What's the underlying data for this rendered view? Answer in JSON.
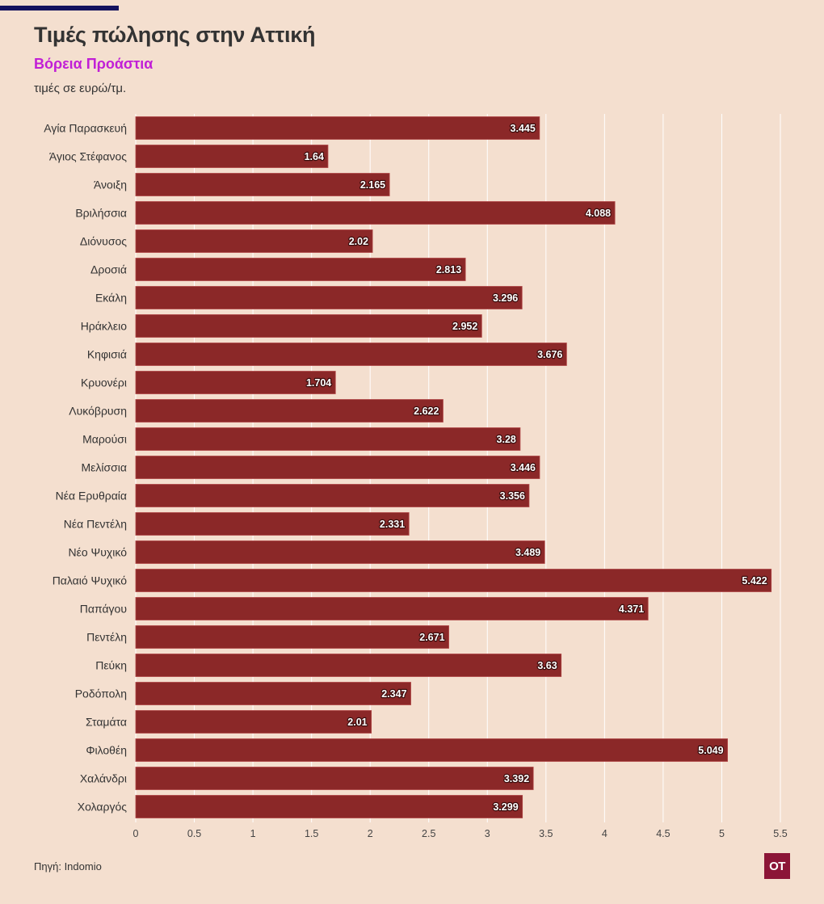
{
  "header": {
    "title": "Τιμές πώλησης στην Αττική",
    "subtitle": "Βόρεια Προάστια",
    "unit_note": "τιμές σε ευρώ/τμ."
  },
  "footer": {
    "source": "Πηγή: Indomio",
    "logo_text": "OT"
  },
  "colors": {
    "bar": "#8b2828",
    "background": "#f4dfcf",
    "accent": "#14125e",
    "subtitle": "#c11fd6",
    "grid": "#ffffff"
  },
  "chart_data": {
    "type": "bar",
    "orientation": "horizontal",
    "title": "Τιμές πώλησης στην Αττική",
    "subtitle": "Βόρεια Προάστια",
    "xlabel": "",
    "ylabel": "",
    "xlim": [
      0,
      5.5
    ],
    "xticks": [
      0,
      0.5,
      1,
      1.5,
      2,
      2.5,
      3,
      3.5,
      4,
      4.5,
      5,
      5.5
    ],
    "xtick_labels": [
      "0",
      "0.5",
      "1",
      "1.5",
      "2",
      "2.5",
      "3",
      "3.5",
      "4",
      "4.5",
      "5",
      "5.5"
    ],
    "grid": true,
    "categories": [
      "Αγία Παρασκευή",
      "Άγιος Στέφανος",
      "Άνοιξη",
      "Βριλήσσια",
      "Διόνυσος",
      "Δροσιά",
      "Εκάλη",
      "Ηράκλειο",
      "Κηφισιά",
      "Κρυονέρι",
      "Λυκόβρυση",
      "Μαρούσι",
      "Μελίσσια",
      "Νέα Ερυθραία",
      "Νέα Πεντέλη",
      "Νέο Ψυχικό",
      "Παλαιό Ψυχικό",
      "Παπάγου",
      "Πεντέλη",
      "Πεύκη",
      "Ροδόπολη",
      "Σταμάτα",
      "Φιλοθέη",
      "Χαλάνδρι",
      "Χολαργός"
    ],
    "values": [
      3.445,
      1.64,
      2.165,
      4.088,
      2.02,
      2.813,
      3.296,
      2.952,
      3.676,
      1.704,
      2.622,
      3.28,
      3.446,
      3.356,
      2.331,
      3.489,
      5.422,
      4.371,
      2.671,
      3.63,
      2.347,
      2.01,
      5.049,
      3.392,
      3.299
    ],
    "value_labels": [
      "3.445",
      "1.64",
      "2.165",
      "4.088",
      "2.02",
      "2.813",
      "3.296",
      "2.952",
      "3.676",
      "1.704",
      "2.622",
      "3.28",
      "3.446",
      "3.356",
      "2.331",
      "3.489",
      "5.422",
      "4.371",
      "2.671",
      "3.63",
      "2.347",
      "2.01",
      "5.049",
      "3.392",
      "3.299"
    ]
  }
}
